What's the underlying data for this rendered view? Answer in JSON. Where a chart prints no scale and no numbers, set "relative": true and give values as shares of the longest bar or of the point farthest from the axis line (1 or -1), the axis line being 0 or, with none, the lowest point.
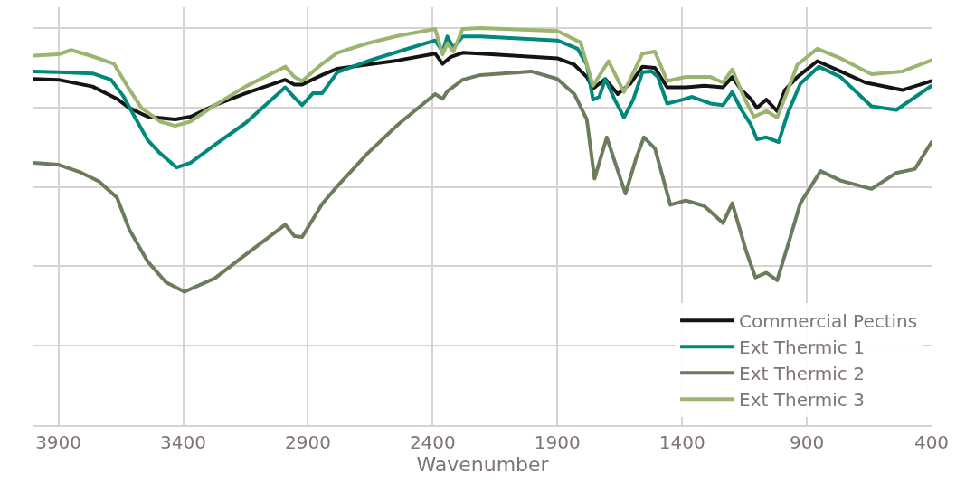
{
  "chart_data": {
    "type": "line",
    "relative": true,
    "xlabel": "Wavenumber",
    "xlim": [
      4000,
      400
    ],
    "xticks": [
      3900,
      3400,
      2900,
      2400,
      1900,
      1400,
      900,
      400
    ],
    "grid": true,
    "legend": "bottom right",
    "marker": "none",
    "line_style": "solid",
    "series": [
      {
        "name": "Commercial Pectins",
        "color": "#141414",
        "x": [
          3999,
          3900,
          3763,
          3665,
          3616,
          3542,
          3432,
          3370,
          3273,
          3150,
          2991,
          2954,
          2923,
          2843,
          2782,
          2537,
          2390,
          2360,
          2329,
          2280,
          2209,
          1900,
          1832,
          1782,
          1757,
          1708,
          1658,
          1608,
          1559,
          1509,
          1460,
          1385,
          1311,
          1236,
          1199,
          1162,
          1125,
          1100,
          1062,
          1019,
          988,
          938,
          858,
          765,
          665,
          517,
          400
        ],
        "values": [
          0.872,
          0.87,
          0.853,
          0.822,
          0.799,
          0.777,
          0.77,
          0.777,
          0.806,
          0.836,
          0.87,
          0.858,
          0.858,
          0.882,
          0.898,
          0.919,
          0.936,
          0.91,
          0.927,
          0.938,
          0.936,
          0.924,
          0.908,
          0.877,
          0.848,
          0.872,
          0.834,
          0.86,
          0.903,
          0.9,
          0.851,
          0.851,
          0.855,
          0.851,
          0.877,
          0.844,
          0.822,
          0.799,
          0.82,
          0.791,
          0.844,
          0.877,
          0.917,
          0.891,
          0.863,
          0.844,
          0.867
        ]
      },
      {
        "name": "Ext Thermic 1",
        "color": "#00897b",
        "x": [
          3999,
          3900,
          3763,
          3689,
          3640,
          3591,
          3542,
          3493,
          3426,
          3370,
          3273,
          3150,
          2991,
          2954,
          2923,
          2880,
          2843,
          2782,
          2660,
          2537,
          2390,
          2360,
          2341,
          2317,
          2280,
          2209,
          1900,
          1819,
          1782,
          1757,
          1732,
          1708,
          1670,
          1633,
          1596,
          1559,
          1522,
          1497,
          1460,
          1398,
          1360,
          1286,
          1236,
          1199,
          1162,
          1125,
          1100,
          1062,
          1013,
          976,
          926,
          852,
          765,
          641,
          541,
          400
        ],
        "values": [
          0.891,
          0.889,
          0.886,
          0.87,
          0.829,
          0.773,
          0.718,
          0.685,
          0.649,
          0.661,
          0.706,
          0.761,
          0.851,
          0.825,
          0.806,
          0.836,
          0.836,
          0.889,
          0.917,
          0.941,
          0.969,
          0.941,
          0.979,
          0.95,
          0.979,
          0.979,
          0.969,
          0.948,
          0.908,
          0.82,
          0.827,
          0.872,
          0.82,
          0.775,
          0.82,
          0.889,
          0.891,
          0.877,
          0.81,
          0.82,
          0.827,
          0.81,
          0.806,
          0.839,
          0.794,
          0.758,
          0.72,
          0.725,
          0.713,
          0.787,
          0.86,
          0.903,
          0.877,
          0.803,
          0.794,
          0.855
        ]
      },
      {
        "name": "Ext Thermic 2",
        "color": "#6b7c5c",
        "x": [
          3999,
          3900,
          3812,
          3738,
          3665,
          3616,
          3542,
          3469,
          3395,
          3273,
          3150,
          2991,
          2954,
          2923,
          2843,
          2782,
          2660,
          2537,
          2390,
          2360,
          2341,
          2280,
          2209,
          2005,
          1900,
          1832,
          1782,
          1751,
          1702,
          1670,
          1627,
          1584,
          1553,
          1509,
          1447,
          1385,
          1311,
          1236,
          1199,
          1143,
          1106,
          1063,
          1019,
          976,
          926,
          845,
          765,
          641,
          542,
          467,
          400
        ],
        "values": [
          0.661,
          0.656,
          0.637,
          0.614,
          0.573,
          0.493,
          0.412,
          0.36,
          0.336,
          0.37,
          0.429,
          0.505,
          0.476,
          0.474,
          0.557,
          0.602,
          0.685,
          0.758,
          0.834,
          0.822,
          0.841,
          0.87,
          0.882,
          0.891,
          0.872,
          0.834,
          0.77,
          0.621,
          0.725,
          0.664,
          0.583,
          0.673,
          0.725,
          0.697,
          0.555,
          0.566,
          0.552,
          0.509,
          0.559,
          0.438,
          0.372,
          0.384,
          0.365,
          0.453,
          0.559,
          0.64,
          0.616,
          0.595,
          0.635,
          0.645,
          0.713
        ]
      },
      {
        "name": "Ext Thermic 3",
        "color": "#9bb46f",
        "x": [
          3999,
          3900,
          3849,
          3763,
          3677,
          3616,
          3567,
          3493,
          3432,
          3370,
          3273,
          3150,
          2991,
          2954,
          2923,
          2843,
          2782,
          2660,
          2537,
          2390,
          2360,
          2341,
          2317,
          2280,
          2209,
          1900,
          1807,
          1757,
          1695,
          1633,
          1559,
          1509,
          1460,
          1385,
          1286,
          1236,
          1199,
          1149,
          1112,
          1062,
          1019,
          976,
          938,
          858,
          765,
          641,
          517,
          400
        ],
        "values": [
          0.931,
          0.934,
          0.945,
          0.929,
          0.91,
          0.846,
          0.799,
          0.765,
          0.754,
          0.765,
          0.806,
          0.853,
          0.903,
          0.877,
          0.867,
          0.91,
          0.938,
          0.962,
          0.981,
          0.998,
          0.934,
          0.962,
          0.941,
          0.998,
          1.0,
          0.993,
          0.964,
          0.855,
          0.917,
          0.839,
          0.936,
          0.941,
          0.867,
          0.877,
          0.877,
          0.863,
          0.896,
          0.822,
          0.777,
          0.791,
          0.775,
          0.844,
          0.908,
          0.948,
          0.924,
          0.884,
          0.891,
          0.919
        ]
      }
    ]
  }
}
